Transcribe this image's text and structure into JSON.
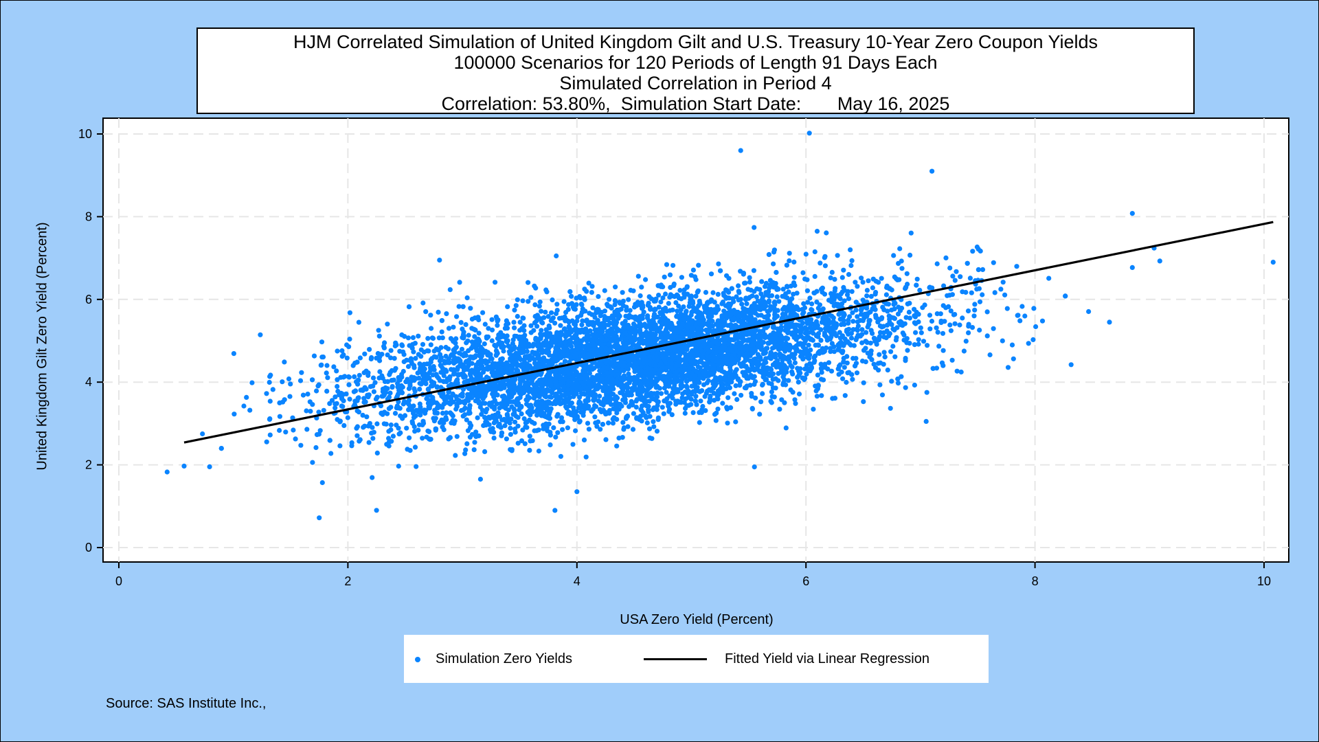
{
  "title_lines": [
    "HJM Correlated Simulation of United Kingdom Gilt and U.S. Treasury 10-Year Zero Coupon Yields",
    "100000 Scenarios for 120 Periods of Length 91 Days Each",
    "Simulated Correlation in Period 4",
    "Correlation: 53.80%,  Simulation Start Date:       May 16, 2025"
  ],
  "source": "Source: SAS Institute Inc.,",
  "colors": {
    "background": "#a0cdfa",
    "points": "#0a84ff",
    "fit_line": "#000000",
    "grid": "#e6e6e6"
  },
  "chart_data": {
    "type": "scatter",
    "xlabel": "USA Zero Yield (Percent)",
    "ylabel": "United Kingdom Gilt Zero Yield (Percent)",
    "xlim": [
      0,
      10
    ],
    "ylim": [
      0,
      10
    ],
    "xticks": [
      0,
      2,
      4,
      6,
      8,
      10
    ],
    "yticks": [
      0,
      2,
      4,
      6,
      8,
      10
    ],
    "grid": true,
    "legend_placement": "bottom",
    "series": [
      {
        "name": "Simulation Zero Yields",
        "kind": "scatter",
        "n_points": 100000,
        "center": [
          4.5,
          4.6
        ],
        "correlation": 0.538,
        "x_std": 1.2,
        "y_std": 0.85,
        "notable_points": [
          [
            0.57,
            1.97
          ],
          [
            0.73,
            2.75
          ],
          [
            1.75,
            0.72
          ],
          [
            2.25,
            0.9
          ],
          [
            6.03,
            10.02
          ],
          [
            5.43,
            9.6
          ],
          [
            7.1,
            9.1
          ],
          [
            8.85,
            8.08
          ],
          [
            8.85,
            6.77
          ],
          [
            10.08,
            6.9
          ],
          [
            8.65,
            5.45
          ],
          [
            7.05,
            3.05
          ],
          [
            5.55,
            1.95
          ],
          [
            4.0,
            1.35
          ],
          [
            2.8,
            6.95
          ]
        ]
      },
      {
        "name": "Fitted Yield via Linear Regression",
        "kind": "line",
        "x": [
          0.57,
          10.08
        ],
        "y": [
          2.54,
          7.87
        ]
      }
    ]
  }
}
